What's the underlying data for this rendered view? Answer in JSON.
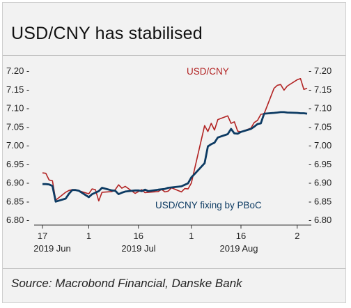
{
  "title": "USD/CNY has stabilised",
  "source": "Source: Macrobond Financial, Danske Bank",
  "chart_data": {
    "type": "line",
    "title": "USD/CNY has stabilised",
    "y_ticks": [
      "7.20",
      "7.15",
      "7.10",
      "7.05",
      "7.00",
      "6.95",
      "6.90",
      "6.85",
      "6.80"
    ],
    "ylim": [
      6.8,
      7.2
    ],
    "x_tick_labels": [
      "17",
      "1",
      "16",
      "1",
      "16",
      "2"
    ],
    "x_group_labels": [
      "2019 Jun",
      "2019 Jul",
      "2019 Aug"
    ],
    "grid": false,
    "series": [
      {
        "name": "USD/CNY",
        "color": "#b22222",
        "x": [
          "2019-06-17",
          "2019-06-18",
          "2019-06-19",
          "2019-06-20",
          "2019-06-21",
          "2019-06-24",
          "2019-06-25",
          "2019-06-26",
          "2019-06-27",
          "2019-06-28",
          "2019-07-01",
          "2019-07-02",
          "2019-07-03",
          "2019-07-04",
          "2019-07-05",
          "2019-07-08",
          "2019-07-09",
          "2019-07-10",
          "2019-07-11",
          "2019-07-12",
          "2019-07-15",
          "2019-07-16",
          "2019-07-17",
          "2019-07-18",
          "2019-07-19",
          "2019-07-22",
          "2019-07-23",
          "2019-07-24",
          "2019-07-25",
          "2019-07-26",
          "2019-07-29",
          "2019-07-30",
          "2019-07-31",
          "2019-08-01",
          "2019-08-02",
          "2019-08-05",
          "2019-08-06",
          "2019-08-07",
          "2019-08-08",
          "2019-08-09",
          "2019-08-12",
          "2019-08-13",
          "2019-08-14",
          "2019-08-15",
          "2019-08-16",
          "2019-08-19",
          "2019-08-20",
          "2019-08-21",
          "2019-08-22",
          "2019-08-23",
          "2019-08-26",
          "2019-08-27",
          "2019-08-28",
          "2019-08-29",
          "2019-08-30",
          "2019-09-02",
          "2019-09-03",
          "2019-09-04",
          "2019-09-05"
        ],
        "values": [
          6.925,
          6.924,
          6.906,
          6.904,
          6.852,
          6.873,
          6.878,
          6.88,
          6.88,
          6.877,
          6.869,
          6.882,
          6.88,
          6.85,
          6.873,
          6.875,
          6.88,
          6.893,
          6.884,
          6.889,
          6.87,
          6.875,
          6.88,
          6.872,
          6.873,
          6.875,
          6.881,
          6.874,
          6.876,
          6.885,
          6.874,
          6.883,
          6.882,
          6.898,
          6.936,
          7.052,
          7.036,
          7.058,
          7.04,
          7.068,
          7.078,
          7.058,
          7.062,
          7.037,
          7.035,
          7.045,
          7.06,
          7.066,
          7.082,
          7.084,
          7.152,
          7.16,
          7.162,
          7.147,
          7.158,
          7.175,
          7.178,
          7.149,
          7.152
        ]
      },
      {
        "name": "USD/CNY fixing by PBoC",
        "color": "#0d3b63",
        "x": [
          "2019-06-17",
          "2019-06-18",
          "2019-06-19",
          "2019-06-20",
          "2019-06-21",
          "2019-06-24",
          "2019-06-25",
          "2019-06-26",
          "2019-06-27",
          "2019-06-28",
          "2019-07-01",
          "2019-07-02",
          "2019-07-03",
          "2019-07-04",
          "2019-07-05",
          "2019-07-08",
          "2019-07-09",
          "2019-07-10",
          "2019-07-11",
          "2019-07-12",
          "2019-07-15",
          "2019-07-16",
          "2019-07-17",
          "2019-07-18",
          "2019-07-19",
          "2019-07-22",
          "2019-07-23",
          "2019-07-24",
          "2019-07-25",
          "2019-07-26",
          "2019-07-29",
          "2019-07-30",
          "2019-07-31",
          "2019-08-01",
          "2019-08-02",
          "2019-08-05",
          "2019-08-06",
          "2019-08-07",
          "2019-08-08",
          "2019-08-09",
          "2019-08-12",
          "2019-08-13",
          "2019-08-14",
          "2019-08-15",
          "2019-08-16",
          "2019-08-19",
          "2019-08-20",
          "2019-08-21",
          "2019-08-22",
          "2019-08-23",
          "2019-08-26",
          "2019-08-27",
          "2019-08-28",
          "2019-08-29",
          "2019-08-30",
          "2019-09-02",
          "2019-09-03",
          "2019-09-04",
          "2019-09-05"
        ],
        "values": [
          6.895,
          6.895,
          6.894,
          6.89,
          6.848,
          6.856,
          6.869,
          6.879,
          6.879,
          6.877,
          6.86,
          6.868,
          6.872,
          6.876,
          6.885,
          6.878,
          6.877,
          6.868,
          6.872,
          6.875,
          6.878,
          6.878,
          6.876,
          6.88,
          6.876,
          6.88,
          6.881,
          6.882,
          6.885,
          6.886,
          6.889,
          6.893,
          6.897,
          6.913,
          6.922,
          6.951,
          6.996,
          7.002,
          7.006,
          7.02,
          7.029,
          7.043,
          7.031,
          7.03,
          7.035,
          7.043,
          7.049,
          7.056,
          7.058,
          7.084,
          7.086,
          7.087,
          7.088,
          7.088,
          7.087,
          7.086,
          7.085,
          7.085,
          7.084
        ]
      }
    ]
  }
}
